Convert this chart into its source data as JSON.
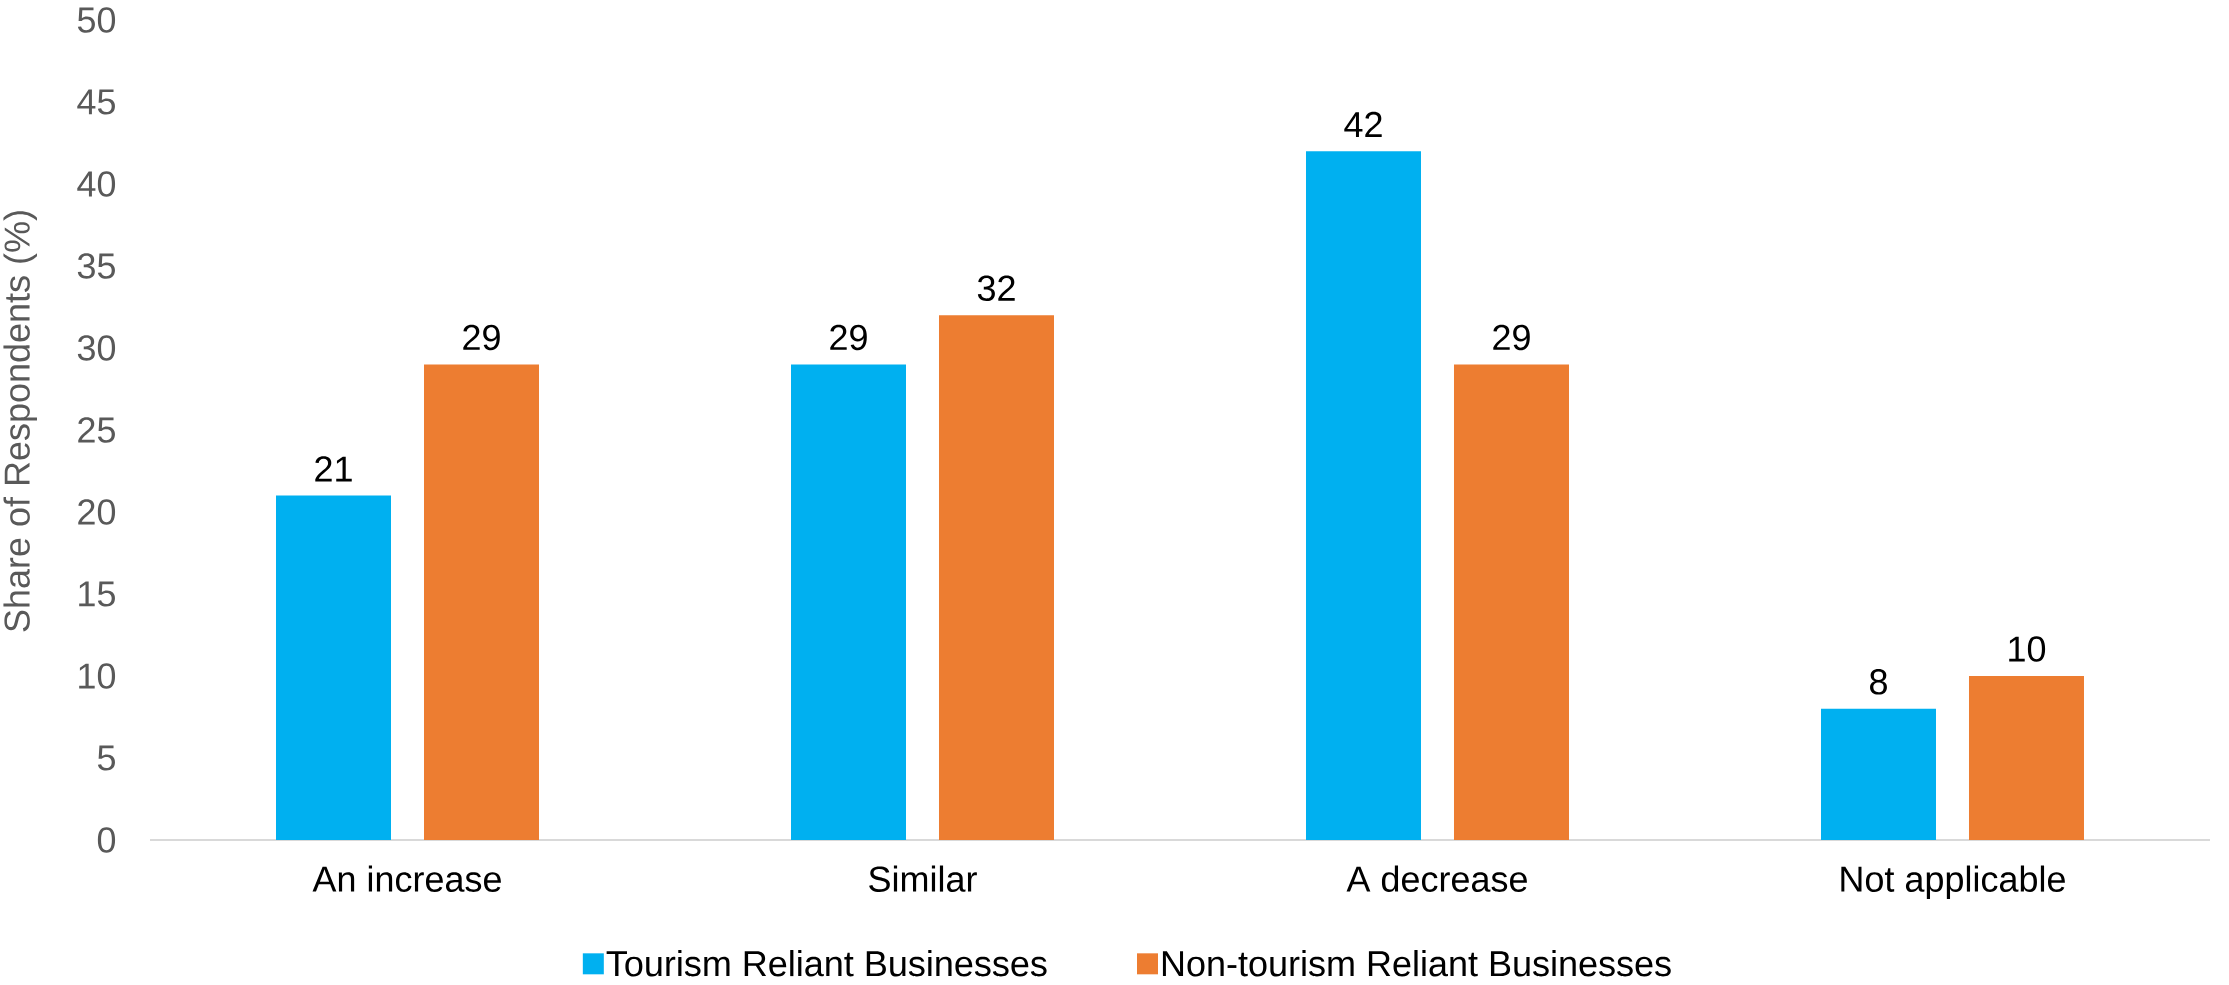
{
  "chart_data": {
    "type": "bar",
    "ylabel": "Share of Respondents (%)",
    "categories": [
      "An increase",
      "Similar",
      "A decrease",
      "Not applicable"
    ],
    "series": [
      {
        "name": "Tourism Reliant Businesses",
        "color": "#00b0f0",
        "values": [
          21,
          29,
          42,
          8
        ]
      },
      {
        "name": "Non-tourism Reliant Businesses",
        "color": "#ed7d31",
        "values": [
          29,
          32,
          29,
          10
        ]
      }
    ],
    "ylim": [
      0,
      50
    ],
    "yticks": [
      0,
      5,
      10,
      15,
      20,
      25,
      30,
      35,
      40,
      45,
      50
    ],
    "legend": "bottom",
    "data_labels": true
  }
}
